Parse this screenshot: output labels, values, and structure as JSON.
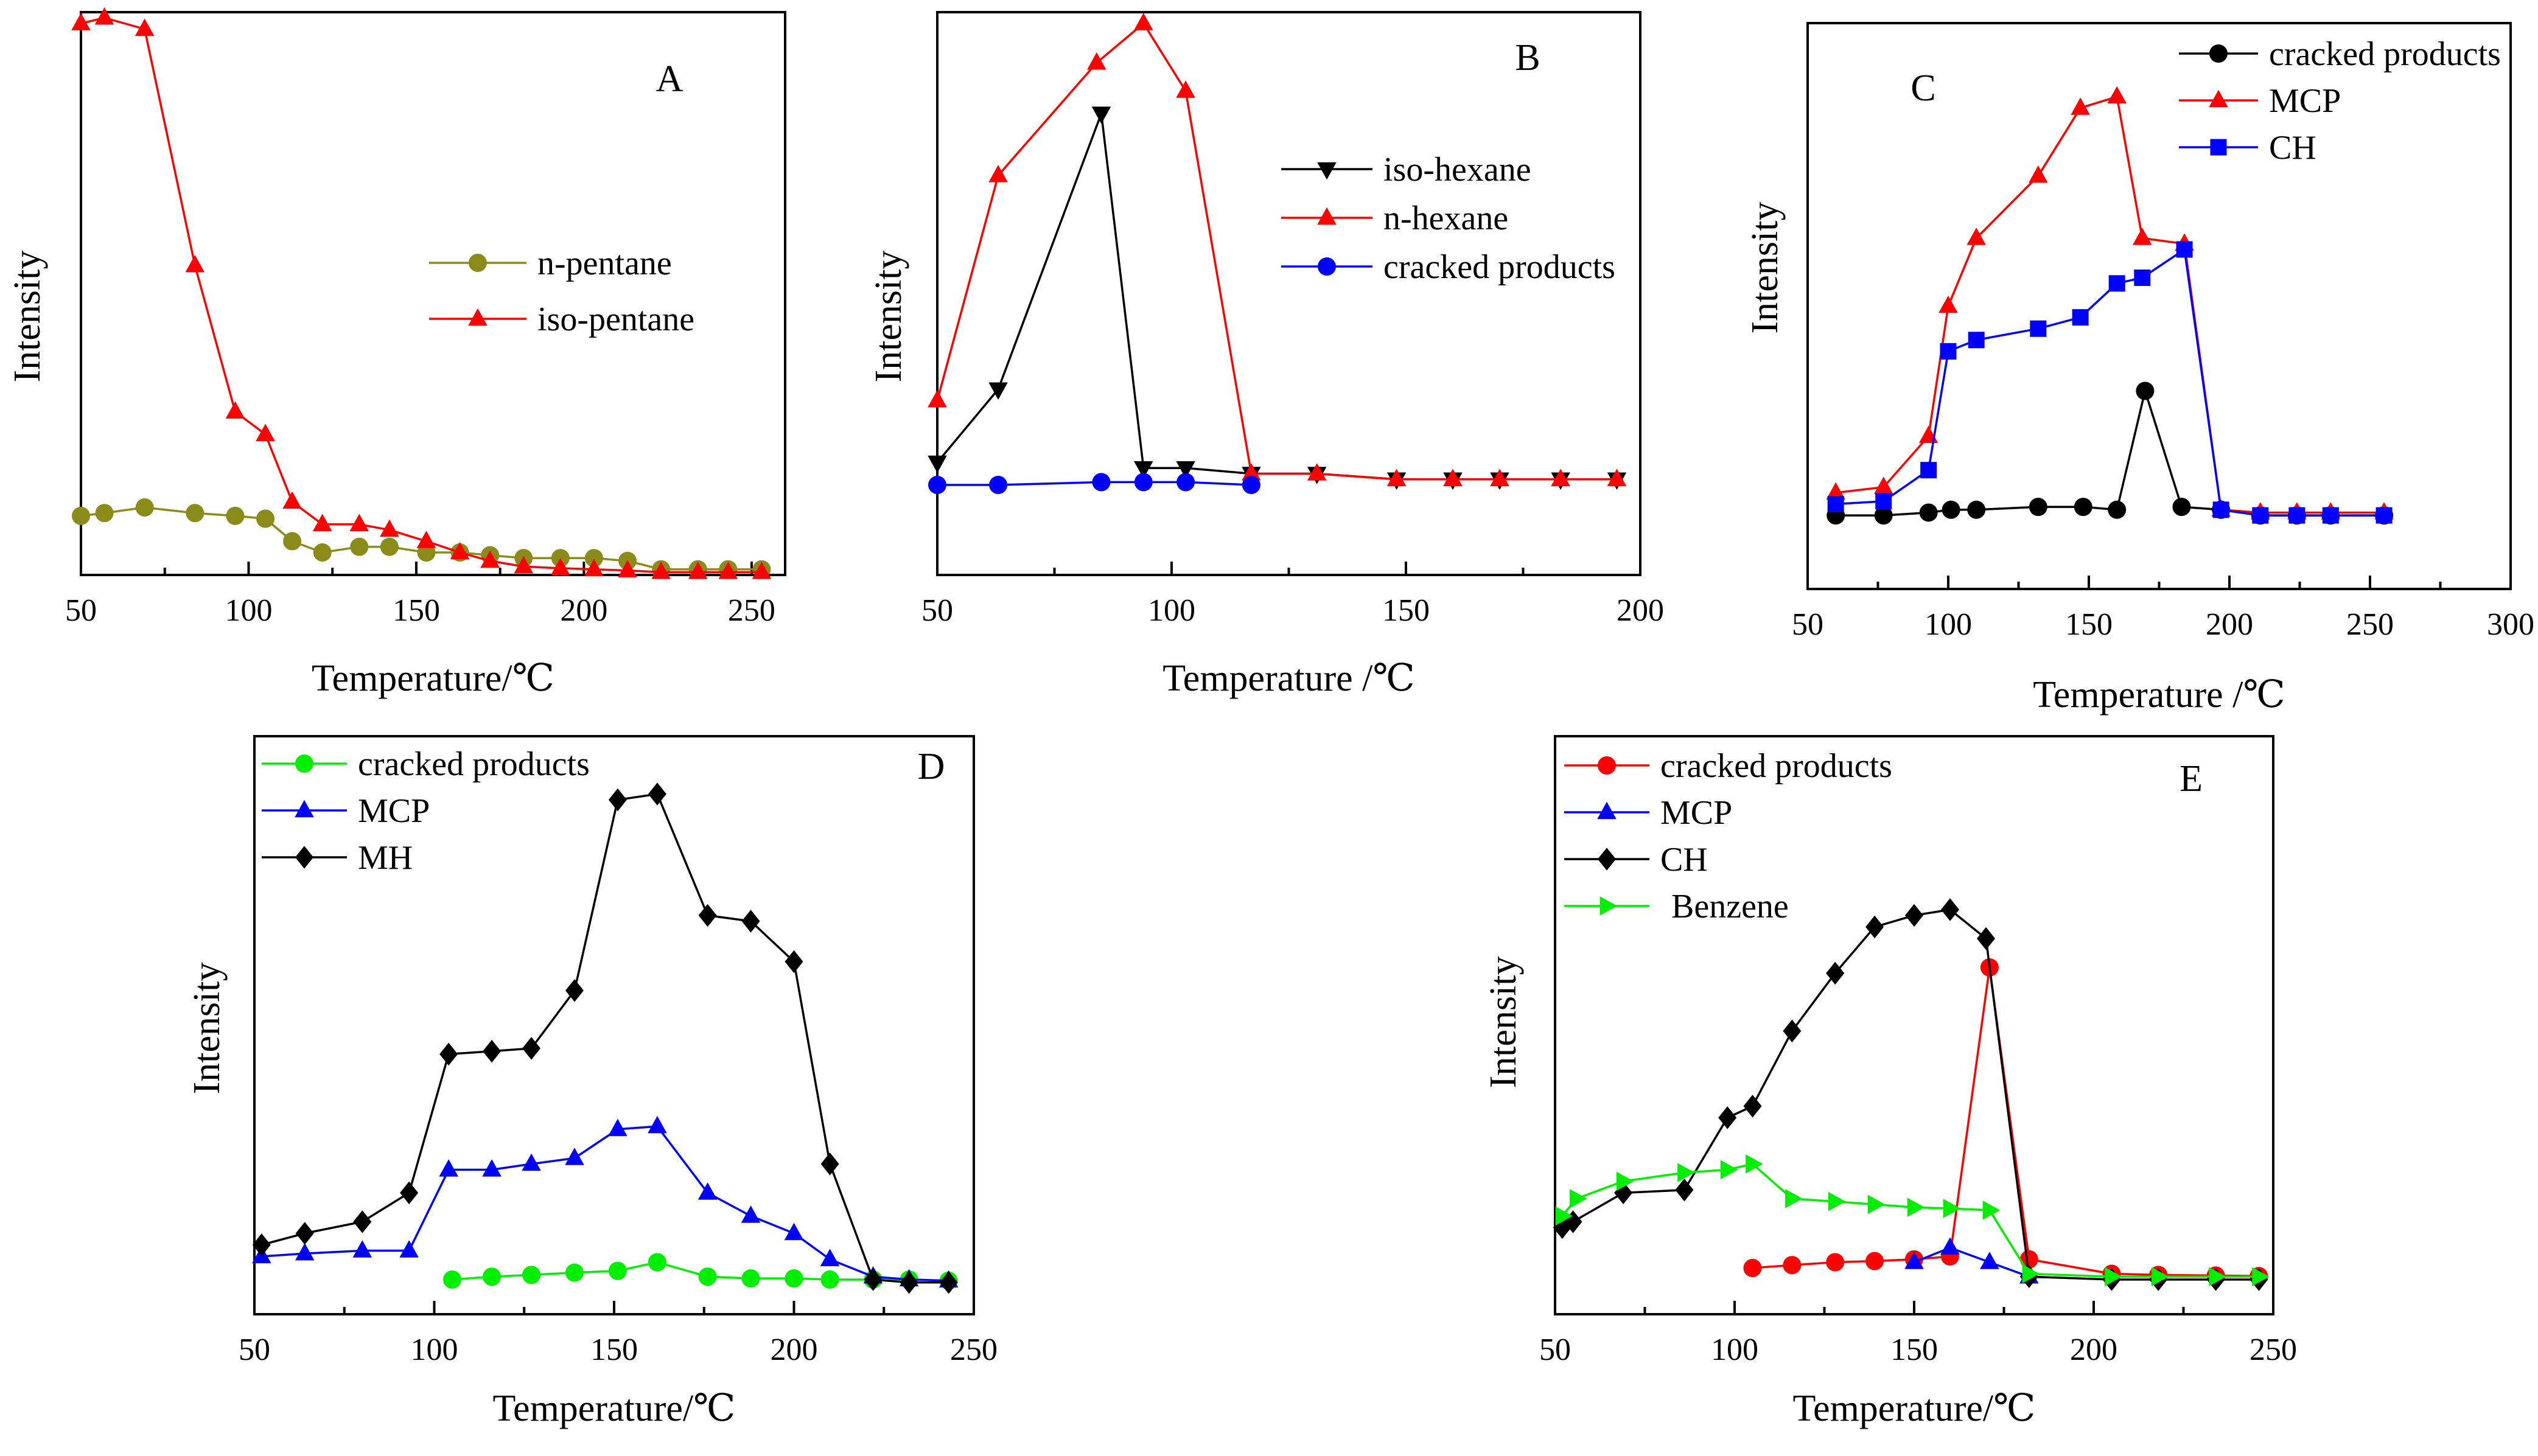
{
  "chart_data": [
    {
      "panel": "A",
      "type": "line",
      "xlabel": "Temperature/℃",
      "ylabel": "Intensity",
      "xlim": [
        50,
        260
      ],
      "xticks": [
        50,
        100,
        150,
        200,
        250
      ],
      "ylim": [
        0,
        1
      ],
      "legend_position": "center-right",
      "series": [
        {
          "name": "n-pentane",
          "color": "#8b8b1a",
          "marker": "circle",
          "x": [
            50,
            57,
            69,
            84,
            96,
            105,
            113,
            122,
            133,
            142,
            153,
            163,
            172,
            182,
            193,
            203,
            213,
            223,
            234,
            243,
            253
          ],
          "y": [
            0.105,
            0.11,
            0.12,
            0.11,
            0.105,
            0.1,
            0.06,
            0.04,
            0.05,
            0.05,
            0.04,
            0.04,
            0.035,
            0.03,
            0.03,
            0.03,
            0.025,
            0.01,
            0.01,
            0.01,
            0.01
          ]
        },
        {
          "name": "iso-pentane",
          "color": "#ff0000",
          "marker": "triangle-up",
          "x": [
            50,
            57,
            69,
            84,
            96,
            105,
            113,
            122,
            133,
            142,
            153,
            163,
            172,
            182,
            193,
            203,
            213,
            223,
            234,
            243,
            253
          ],
          "y": [
            0.98,
            0.99,
            0.97,
            0.55,
            0.29,
            0.25,
            0.13,
            0.09,
            0.09,
            0.08,
            0.06,
            0.04,
            0.025,
            0.015,
            0.012,
            0.01,
            0.008,
            0.005,
            0.005,
            0.005,
            0.005
          ]
        }
      ]
    },
    {
      "panel": "B",
      "type": "line",
      "xlabel": "Temperature /℃",
      "ylabel": "Intensity",
      "xlim": [
        50,
        200
      ],
      "xticks": [
        50,
        100,
        150,
        200
      ],
      "ylim": [
        0,
        1
      ],
      "legend_position": "right",
      "series": [
        {
          "name": "iso-hexane",
          "color": "#000000",
          "marker": "triangle-down",
          "x": [
            50,
            63,
            85,
            94,
            103,
            117,
            131,
            148,
            160,
            170,
            183,
            195
          ],
          "y": [
            0.2,
            0.33,
            0.82,
            0.19,
            0.19,
            0.18,
            0.18,
            0.17,
            0.17,
            0.17,
            0.17,
            0.17
          ]
        },
        {
          "name": "n-hexane",
          "color": "#ff0000",
          "marker": "triangle-up",
          "x": [
            50,
            63,
            84,
            94,
            103,
            117,
            131,
            148,
            160,
            170,
            183,
            195
          ],
          "y": [
            0.31,
            0.71,
            0.91,
            0.98,
            0.86,
            0.18,
            0.18,
            0.17,
            0.17,
            0.17,
            0.17,
            0.17
          ]
        },
        {
          "name": "cracked products",
          "color": "#0000ff",
          "marker": "circle",
          "x": [
            50,
            63,
            85,
            94,
            103,
            117
          ],
          "y": [
            0.16,
            0.16,
            0.165,
            0.165,
            0.165,
            0.16
          ]
        }
      ]
    },
    {
      "panel": "C",
      "type": "line",
      "xlabel": "Temperature /℃",
      "ylabel": "Intensity",
      "xlim": [
        50,
        300
      ],
      "xticks": [
        50,
        100,
        150,
        200,
        250,
        300
      ],
      "ylim": [
        0,
        1
      ],
      "legend_position": "top-right",
      "series": [
        {
          "name": "cracked products",
          "color": "#000000",
          "marker": "circle",
          "x": [
            60,
            77,
            93,
            101,
            110,
            132,
            148,
            160,
            170,
            183,
            197,
            211,
            224,
            236,
            255
          ],
          "y": [
            0.13,
            0.13,
            0.135,
            0.14,
            0.14,
            0.145,
            0.145,
            0.14,
            0.35,
            0.145,
            0.14,
            0.13,
            0.13,
            0.13,
            0.13
          ]
        },
        {
          "name": "MCP",
          "color": "#ff0000",
          "marker": "triangle-up",
          "x": [
            60,
            77,
            93,
            100,
            110,
            132,
            147,
            160,
            169,
            184,
            197,
            211,
            224,
            236,
            255
          ],
          "y": [
            0.17,
            0.18,
            0.27,
            0.5,
            0.62,
            0.73,
            0.85,
            0.87,
            0.62,
            0.61,
            0.14,
            0.135,
            0.135,
            0.135,
            0.135
          ]
        },
        {
          "name": "CH",
          "color": "#0000ff",
          "marker": "square",
          "x": [
            60,
            77,
            93,
            100,
            110,
            132,
            147,
            160,
            169,
            184,
            197,
            211,
            224,
            236,
            255
          ],
          "y": [
            0.15,
            0.155,
            0.21,
            0.42,
            0.44,
            0.46,
            0.48,
            0.54,
            0.55,
            0.6,
            0.14,
            0.13,
            0.13,
            0.13,
            0.13
          ]
        }
      ]
    },
    {
      "panel": "D",
      "type": "line",
      "xlabel": "Temperature/℃",
      "ylabel": "Intensity",
      "xlim": [
        50,
        250
      ],
      "xticks": [
        50,
        100,
        150,
        200,
        250
      ],
      "ylim": [
        0,
        1
      ],
      "legend_position": "top-left",
      "series": [
        {
          "name": "cracked products",
          "color": "#00ee00",
          "marker": "circle",
          "x": [
            105,
            116,
            127,
            139,
            151,
            162,
            176,
            188,
            200,
            210,
            222,
            232,
            243
          ],
          "y": [
            0.06,
            0.065,
            0.068,
            0.072,
            0.075,
            0.09,
            0.065,
            0.062,
            0.062,
            0.06,
            0.06,
            0.06,
            0.058
          ]
        },
        {
          "name": "MCP",
          "color": "#0000ff",
          "marker": "triangle-up",
          "x": [
            52,
            64,
            80,
            93,
            104,
            116,
            127,
            139,
            151,
            162,
            176,
            188,
            200,
            210,
            222,
            232,
            243
          ],
          "y": [
            0.1,
            0.105,
            0.11,
            0.11,
            0.25,
            0.25,
            0.26,
            0.27,
            0.32,
            0.325,
            0.21,
            0.17,
            0.14,
            0.095,
            0.065,
            0.06,
            0.058
          ]
        },
        {
          "name": "MH",
          "color": "#000000",
          "marker": "diamond",
          "x": [
            52,
            64,
            80,
            93,
            104,
            116,
            127,
            139,
            151,
            162,
            176,
            188,
            200,
            210,
            222,
            232,
            243
          ],
          "y": [
            0.12,
            0.14,
            0.16,
            0.21,
            0.45,
            0.455,
            0.46,
            0.56,
            0.89,
            0.9,
            0.69,
            0.68,
            0.61,
            0.26,
            0.06,
            0.055,
            0.055
          ]
        }
      ]
    },
    {
      "panel": "E",
      "type": "line",
      "xlabel": "Temperature/℃",
      "ylabel": "Intensity",
      "xlim": [
        50,
        250
      ],
      "xticks": [
        50,
        100,
        150,
        200,
        250
      ],
      "ylim": [
        0,
        1
      ],
      "legend_position": "top-left",
      "series": [
        {
          "name": "cracked products",
          "color": "#ff0000",
          "marker": "circle",
          "x": [
            105,
            116,
            128,
            139,
            150,
            160,
            171,
            182,
            205,
            218,
            234,
            246
          ],
          "y": [
            0.08,
            0.085,
            0.09,
            0.092,
            0.095,
            0.1,
            0.6,
            0.095,
            0.07,
            0.068,
            0.067,
            0.066
          ]
        },
        {
          "name": "MCP",
          "color": "#0000ff",
          "marker": "triangle-up",
          "x": [
            150,
            160,
            171,
            182
          ],
          "y": [
            0.09,
            0.115,
            0.09,
            0.065
          ]
        },
        {
          "name": "CH",
          "color": "#000000",
          "marker": "diamond",
          "x": [
            52,
            55,
            69,
            86,
            98,
            105,
            116,
            128,
            139,
            150,
            160,
            170,
            182,
            205,
            218,
            234,
            246
          ],
          "y": [
            0.15,
            0.16,
            0.21,
            0.215,
            0.34,
            0.36,
            0.49,
            0.59,
            0.67,
            0.69,
            0.7,
            0.65,
            0.065,
            0.06,
            0.06,
            0.06,
            0.06
          ]
        },
        {
          "name": "Benzene",
          "color": "#00ee00",
          "marker": "triangle-right",
          "x": [
            52,
            56,
            69,
            86,
            98,
            105,
            116,
            128,
            139,
            150,
            160,
            171,
            182,
            205,
            218,
            234,
            246
          ],
          "y": [
            0.17,
            0.2,
            0.23,
            0.245,
            0.25,
            0.26,
            0.2,
            0.195,
            0.19,
            0.185,
            0.183,
            0.18,
            0.07,
            0.065,
            0.065,
            0.065,
            0.065
          ]
        }
      ]
    }
  ]
}
